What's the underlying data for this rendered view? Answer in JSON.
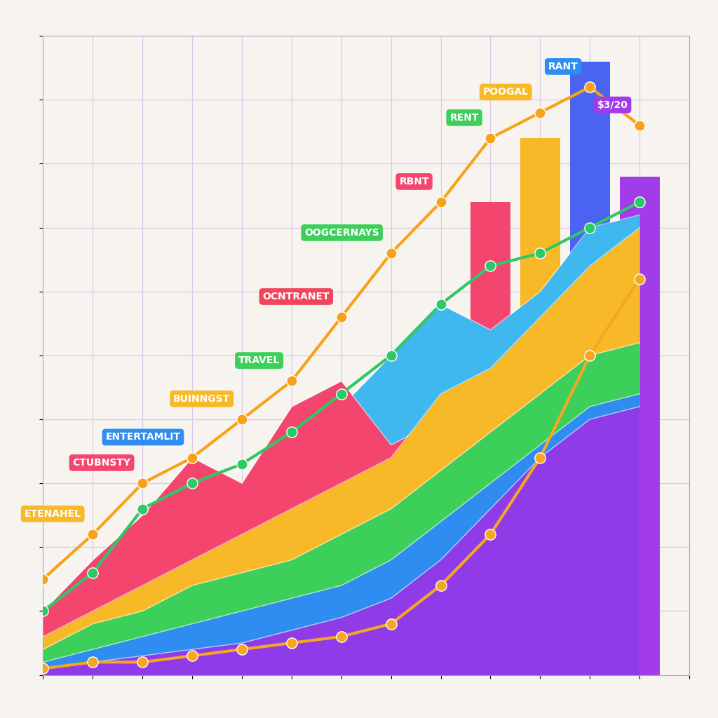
{
  "chart_data": {
    "type": "area",
    "x": [
      0,
      1,
      2,
      3,
      4,
      5,
      6,
      7,
      8,
      9,
      10,
      11,
      12
    ],
    "xlim": [
      0,
      13
    ],
    "xticks": [
      0,
      1,
      2,
      3,
      4,
      5,
      6,
      7,
      8,
      9,
      10,
      11,
      12,
      13
    ],
    "ylim": [
      0,
      100
    ],
    "yticks": [
      0,
      10,
      20,
      30,
      40,
      50,
      60,
      70,
      80,
      90,
      100
    ],
    "grid": true,
    "tick_labels": false,
    "series": [
      {
        "type": "bar",
        "x": [
          9,
          10,
          11,
          12
        ],
        "values": [
          74,
          84,
          96,
          78
        ],
        "colors": [
          "#f4456f",
          "#f7b928",
          "#4a63f0",
          "#a23be8"
        ]
      },
      {
        "type": "area",
        "color": "#3fb8f0",
        "values": [
          8,
          14,
          20,
          26,
          30,
          36,
          42,
          50,
          58,
          54,
          60,
          70,
          72
        ]
      },
      {
        "type": "area",
        "color": "#f4456f",
        "values": [
          10,
          18,
          25,
          34,
          30,
          42,
          46,
          36,
          40,
          30,
          28,
          25,
          22
        ]
      },
      {
        "type": "area",
        "color": "#f7b928",
        "values": [
          6,
          10,
          14,
          18,
          22,
          26,
          30,
          34,
          44,
          48,
          56,
          64,
          70
        ]
      },
      {
        "type": "area",
        "color": "#3ccf5a",
        "values": [
          4,
          8,
          10,
          14,
          16,
          18,
          22,
          26,
          32,
          38,
          44,
          50,
          52
        ]
      },
      {
        "type": "area",
        "color": "#2f8cf0",
        "values": [
          2,
          4,
          6,
          8,
          10,
          12,
          14,
          18,
          24,
          30,
          36,
          42,
          44
        ]
      },
      {
        "type": "area",
        "color": "#8f3be8",
        "values": [
          1,
          2,
          3,
          4,
          5,
          7,
          9,
          12,
          18,
          26,
          34,
          40,
          42
        ]
      },
      {
        "type": "line",
        "color": "#2ec866",
        "marker": "o",
        "line_style": "solid",
        "values": [
          10,
          16,
          26,
          30,
          33,
          38,
          44,
          50,
          58,
          64,
          66,
          70,
          74
        ]
      },
      {
        "type": "line",
        "color": "#f5a623",
        "marker": "o",
        "line_style": "solid",
        "values": [
          1,
          2,
          2,
          3,
          4,
          5,
          6,
          8,
          14,
          22,
          34,
          50,
          62
        ]
      },
      {
        "type": "line",
        "color": "#f7a21b",
        "marker": "o",
        "line_style": "solid",
        "values": [
          15,
          22,
          30,
          34,
          40,
          46,
          56,
          66,
          74,
          84,
          88,
          92,
          86
        ]
      }
    ],
    "annotations": [
      {
        "text": "ETENAHEL",
        "x": 1,
        "y": 22,
        "color": "#f7b928"
      },
      {
        "text": "CTUBNSTY",
        "x": 2,
        "y": 30,
        "color": "#f4456f"
      },
      {
        "text": "ENTERTAMLIT",
        "x": 3,
        "y": 34,
        "color": "#2f8cf0"
      },
      {
        "text": "BUINNGST",
        "x": 4,
        "y": 40,
        "color": "#f7b928"
      },
      {
        "text": "TRAVEL",
        "x": 5,
        "y": 46,
        "color": "#3ccf5a"
      },
      {
        "text": "OCNTRANET",
        "x": 6,
        "y": 56,
        "color": "#f0455a"
      },
      {
        "text": "OOGCERNAYS",
        "x": 7,
        "y": 66,
        "color": "#3ccf5a"
      },
      {
        "text": "RBNT",
        "x": 8,
        "y": 74,
        "color": "#f4456f"
      },
      {
        "text": "RENT",
        "x": 9,
        "y": 84,
        "color": "#3ccf5a"
      },
      {
        "text": "POOGAL",
        "x": 10,
        "y": 88,
        "color": "#f7b928"
      },
      {
        "text": "RANT",
        "x": 11,
        "y": 92,
        "color": "#2f8cf0"
      },
      {
        "text": "$3/20",
        "x": 12,
        "y": 86,
        "color": "#a23be8"
      }
    ]
  }
}
